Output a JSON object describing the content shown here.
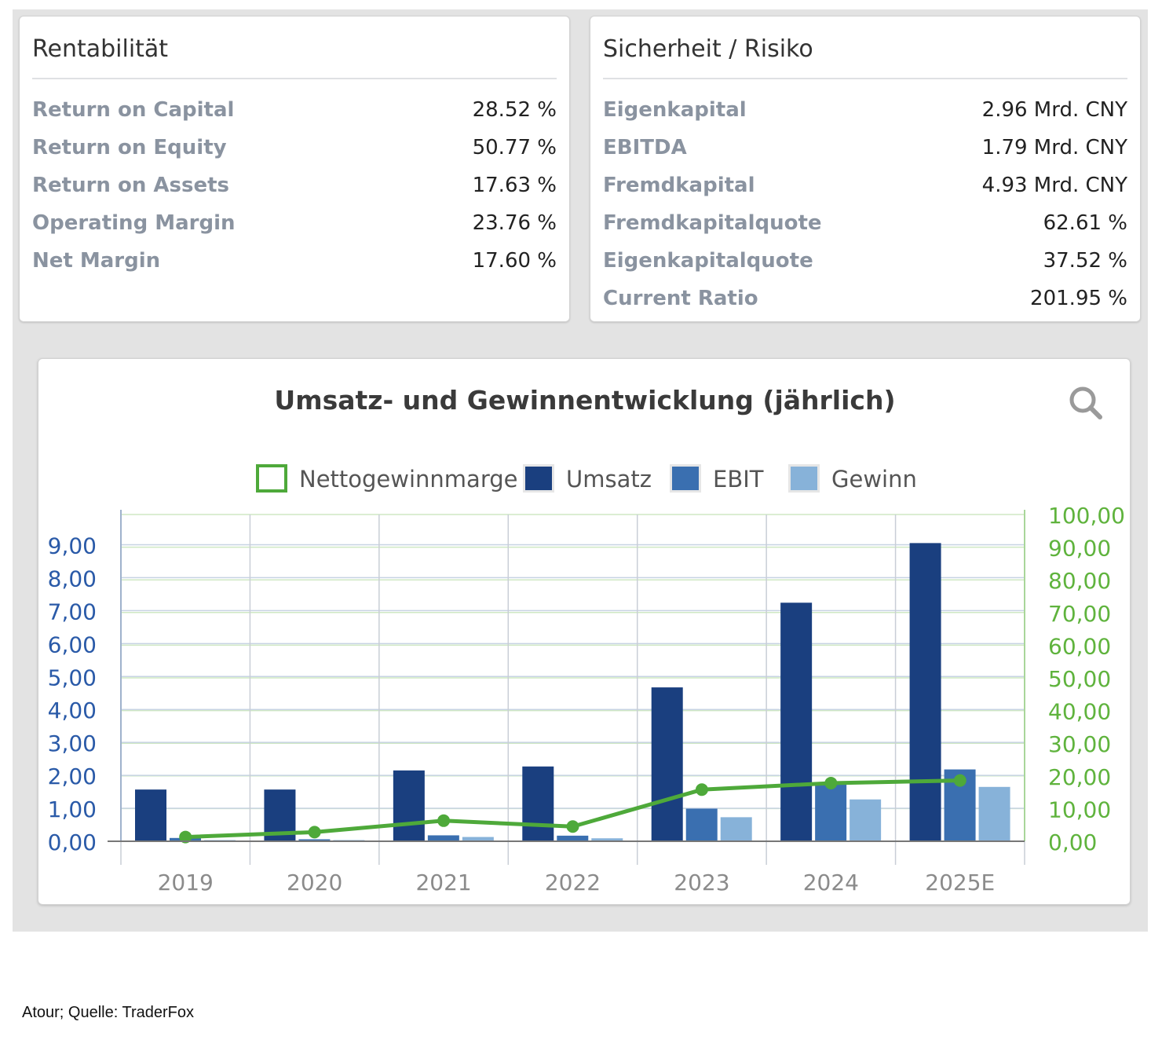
{
  "rentabilitaet": {
    "title": "Rentabilität",
    "rows": [
      {
        "label": "Return on Capital",
        "value": "28.52 %"
      },
      {
        "label": "Return on Equity",
        "value": "50.77 %"
      },
      {
        "label": "Return on Assets",
        "value": "17.63 %"
      },
      {
        "label": "Operating Margin",
        "value": "23.76 %"
      },
      {
        "label": "Net Margin",
        "value": "17.60 %"
      }
    ]
  },
  "sicherheit": {
    "title": "Sicherheit / Risiko",
    "rows": [
      {
        "label": "Eigenkapital",
        "value": "2.96 Mrd. CNY"
      },
      {
        "label": "EBITDA",
        "value": "1.79 Mrd. CNY"
      },
      {
        "label": "Fremdkapital",
        "value": "4.93 Mrd. CNY"
      },
      {
        "label": "Fremdkapitalquote",
        "value": "62.61 %"
      },
      {
        "label": "Eigenkapitalquote",
        "value": "37.52 %"
      },
      {
        "label": "Current Ratio",
        "value": "201.95 %"
      }
    ]
  },
  "chart_data": {
    "type": "bar",
    "title": "Umsatz- und Gewinnentwicklung (jährlich)",
    "categories": [
      "2019",
      "2020",
      "2021",
      "2022",
      "2023",
      "2024",
      "2025E"
    ],
    "series": [
      {
        "name": "Umsatz",
        "kind": "bar",
        "axis": "left",
        "color": "#1a3f7f",
        "values": [
          1.57,
          1.57,
          2.15,
          2.27,
          4.67,
          7.24,
          9.05
        ]
      },
      {
        "name": "EBIT",
        "kind": "bar",
        "axis": "left",
        "color": "#3a6fb0",
        "values": [
          0.1,
          0.06,
          0.18,
          0.17,
          0.99,
          1.72,
          2.18
        ]
      },
      {
        "name": "Gewinn",
        "kind": "bar",
        "axis": "left",
        "color": "#87b2d9",
        "values": [
          0.02,
          0.03,
          0.13,
          0.09,
          0.73,
          1.27,
          1.65
        ]
      },
      {
        "name": "Nettogewinnmarge",
        "kind": "line",
        "axis": "right",
        "color": "#4ea93a",
        "values": [
          1.3,
          2.8,
          6.3,
          4.5,
          15.8,
          17.8,
          18.6
        ]
      }
    ],
    "y_left": {
      "min": 0,
      "max": 9.5,
      "ticks": [
        "0,00",
        "1,00",
        "2,00",
        "3,00",
        "4,00",
        "5,00",
        "6,00",
        "7,00",
        "8,00",
        "9,00"
      ],
      "color": "#2a5aa8"
    },
    "y_right": {
      "min": 0,
      "max": 100,
      "ticks": [
        "0,00",
        "10,00",
        "20,00",
        "30,00",
        "40,00",
        "50,00",
        "60,00",
        "70,00",
        "80,00",
        "90,00",
        "100,00"
      ],
      "color": "#5fb33d"
    },
    "grid": true,
    "legend_placement": "top-center",
    "icon": "magnifier-icon"
  },
  "source": "Atour; Quelle: TraderFox"
}
